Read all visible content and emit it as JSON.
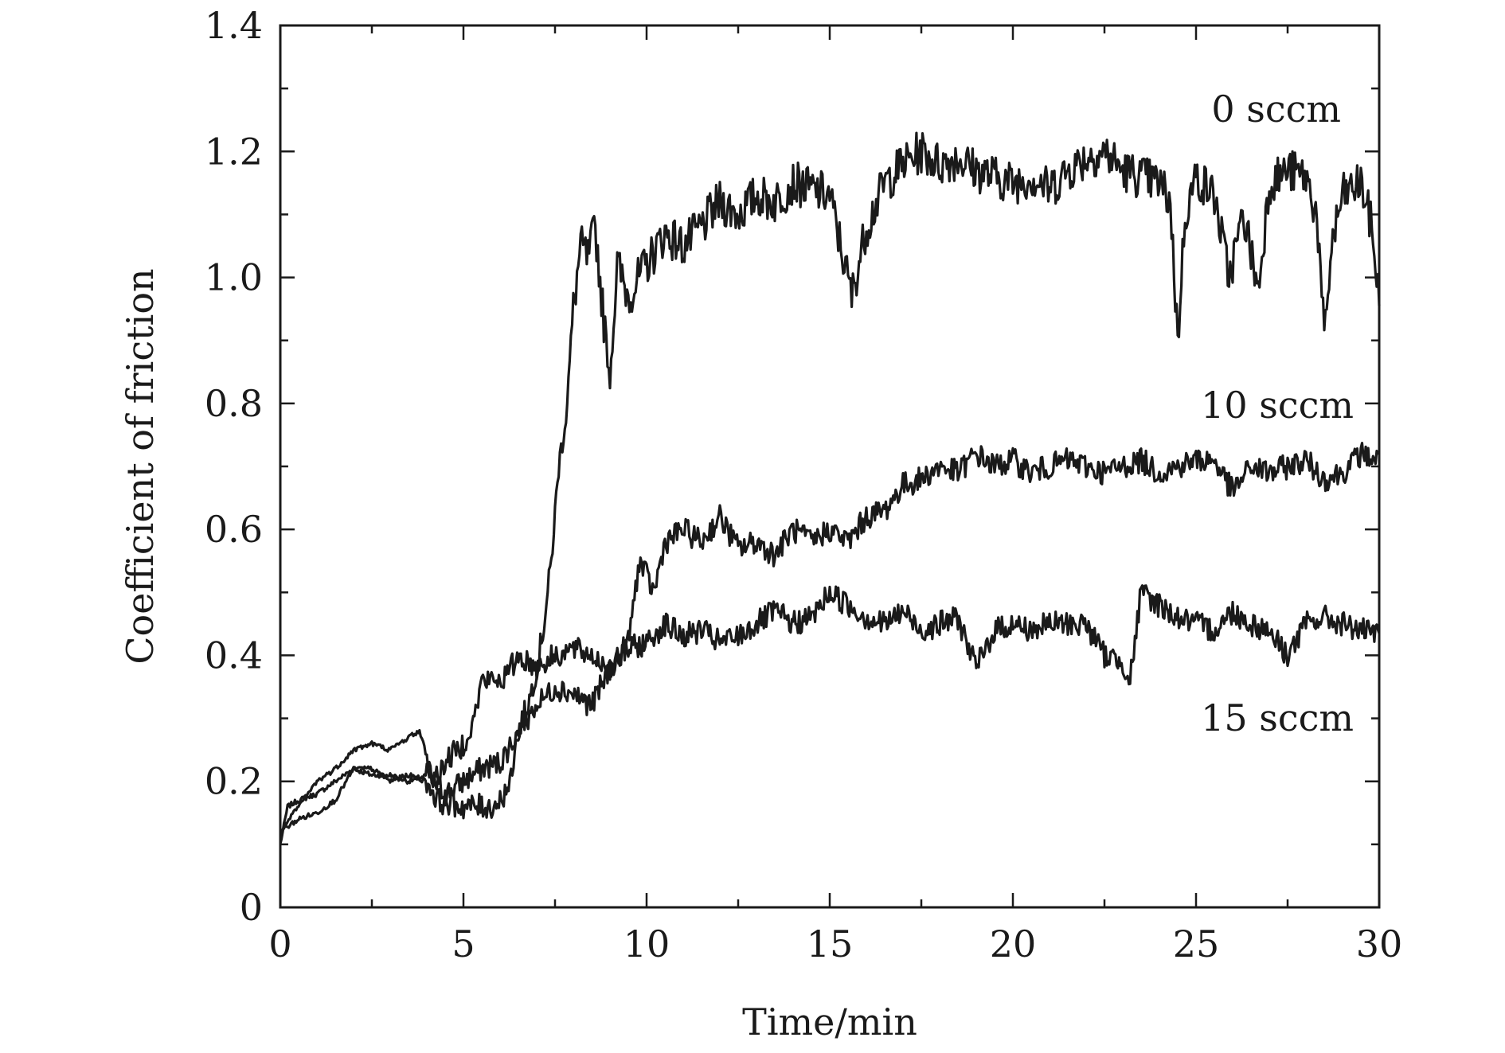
{
  "chart_data": {
    "type": "line",
    "title": "",
    "xlabel": "Time/min",
    "ylabel": "Coefficient of friction",
    "xlim": [
      0,
      30
    ],
    "ylim": [
      0,
      1.4
    ],
    "x_ticks": [
      0,
      5,
      10,
      15,
      20,
      25,
      30
    ],
    "x_tick_labels": [
      "0",
      "5",
      "10",
      "15",
      "20",
      "25",
      "30"
    ],
    "x_minor_step": 2.5,
    "y_ticks": [
      0,
      0.2,
      0.4,
      0.6,
      0.8,
      1.0,
      1.2,
      1.4
    ],
    "y_tick_labels": [
      "0",
      "0.2",
      "0.4",
      "0.6",
      "0.8",
      "1.0",
      "1.2",
      "1.4"
    ],
    "y_minor_step": 0.1,
    "grid": false,
    "legend": "none",
    "line_color": "#1a1a1a",
    "series": [
      {
        "name": "0 sccm",
        "x": [
          0,
          0.2,
          0.5,
          1,
          1.5,
          2,
          2.5,
          3,
          3.5,
          4,
          4.5,
          5,
          5.5,
          6,
          6.5,
          6.8,
          7,
          7.2,
          7.4,
          7.6,
          7.8,
          8,
          8.2,
          8.4,
          8.6,
          8.8,
          9,
          9.2,
          9.5,
          10,
          10.5,
          11,
          11.5,
          12,
          12.5,
          13,
          13.5,
          14,
          14.5,
          15,
          15.3,
          15.6,
          16,
          16.5,
          17,
          17.5,
          18,
          18.5,
          19,
          19.5,
          20,
          20.5,
          21,
          21.5,
          22,
          22.5,
          23,
          23.5,
          24,
          24.3,
          24.5,
          24.7,
          25,
          25.5,
          25.9,
          26.3,
          26.7,
          27,
          27.5,
          28,
          28.3,
          28.5,
          28.7,
          29,
          29.5,
          29.8,
          30
        ],
        "y": [
          0.1,
          0.16,
          0.17,
          0.18,
          0.2,
          0.22,
          0.21,
          0.21,
          0.2,
          0.21,
          0.18,
          0.2,
          0.22,
          0.23,
          0.28,
          0.33,
          0.38,
          0.45,
          0.55,
          0.7,
          0.78,
          0.95,
          1.05,
          1.03,
          1.08,
          0.95,
          0.84,
          1.02,
          0.97,
          1.02,
          1.07,
          1.05,
          1.08,
          1.12,
          1.1,
          1.13,
          1.12,
          1.15,
          1.14,
          1.13,
          1.05,
          0.97,
          1.08,
          1.15,
          1.18,
          1.2,
          1.18,
          1.19,
          1.17,
          1.16,
          1.15,
          1.16,
          1.14,
          1.17,
          1.19,
          1.2,
          1.17,
          1.16,
          1.15,
          1.12,
          0.9,
          1.1,
          1.16,
          1.13,
          1.0,
          1.1,
          0.98,
          1.15,
          1.17,
          1.16,
          1.1,
          0.9,
          1.05,
          1.13,
          1.15,
          1.08,
          0.96
        ]
      },
      {
        "name": "10 sccm",
        "x": [
          0,
          0.5,
          1,
          1.5,
          2,
          2.5,
          3,
          3.5,
          4,
          4.3,
          5,
          5.5,
          5.8,
          6,
          6.3,
          6.5,
          7,
          7.5,
          8,
          8.5,
          9,
          9.5,
          9.8,
          10.2,
          10.5,
          11,
          11.5,
          12,
          12.5,
          13,
          13.5,
          14,
          14.5,
          15,
          15.5,
          16,
          16.5,
          17,
          17.5,
          18,
          18.5,
          19,
          19.5,
          20,
          20.5,
          21,
          21.5,
          22,
          22.5,
          23,
          23.5,
          24,
          24.5,
          25,
          25.5,
          26,
          26.5,
          27,
          27.5,
          28,
          28.5,
          29,
          29.5,
          30
        ],
        "y": [
          0.12,
          0.14,
          0.15,
          0.17,
          0.22,
          0.22,
          0.2,
          0.21,
          0.2,
          0.17,
          0.16,
          0.16,
          0.16,
          0.17,
          0.2,
          0.28,
          0.32,
          0.35,
          0.34,
          0.32,
          0.38,
          0.42,
          0.55,
          0.5,
          0.58,
          0.6,
          0.58,
          0.62,
          0.57,
          0.58,
          0.56,
          0.6,
          0.58,
          0.6,
          0.58,
          0.62,
          0.63,
          0.67,
          0.68,
          0.7,
          0.69,
          0.72,
          0.7,
          0.71,
          0.69,
          0.7,
          0.71,
          0.7,
          0.69,
          0.7,
          0.71,
          0.69,
          0.7,
          0.71,
          0.71,
          0.66,
          0.7,
          0.69,
          0.7,
          0.71,
          0.68,
          0.69,
          0.72,
          0.71
        ]
      },
      {
        "name": "15 sccm",
        "x": [
          0,
          0.5,
          1,
          1.5,
          2,
          2.5,
          3,
          3.5,
          3.8,
          4.2,
          4.5,
          5,
          5.3,
          5.5,
          6,
          6.2,
          6.5,
          7,
          7.5,
          8,
          8.5,
          9,
          9.5,
          10,
          10.5,
          11,
          11.5,
          12,
          12.5,
          13,
          13.5,
          14,
          14.5,
          15,
          15.5,
          16,
          16.5,
          17,
          17.5,
          18,
          18.5,
          19,
          19.5,
          20,
          20.5,
          21,
          21.5,
          22,
          22.5,
          23,
          23.2,
          23.5,
          24,
          24.5,
          25,
          25.5,
          26,
          26.5,
          27,
          27.5,
          28,
          28.5,
          29,
          29.5,
          30
        ],
        "y": [
          0.12,
          0.16,
          0.2,
          0.22,
          0.25,
          0.26,
          0.25,
          0.27,
          0.28,
          0.2,
          0.23,
          0.26,
          0.3,
          0.36,
          0.36,
          0.37,
          0.4,
          0.38,
          0.4,
          0.41,
          0.4,
          0.38,
          0.41,
          0.42,
          0.45,
          0.43,
          0.44,
          0.42,
          0.43,
          0.45,
          0.47,
          0.45,
          0.46,
          0.5,
          0.48,
          0.46,
          0.45,
          0.47,
          0.44,
          0.45,
          0.46,
          0.38,
          0.44,
          0.45,
          0.44,
          0.45,
          0.45,
          0.45,
          0.4,
          0.39,
          0.36,
          0.5,
          0.48,
          0.46,
          0.45,
          0.44,
          0.47,
          0.45,
          0.44,
          0.4,
          0.45,
          0.46,
          0.45,
          0.44,
          0.43
        ]
      }
    ]
  }
}
